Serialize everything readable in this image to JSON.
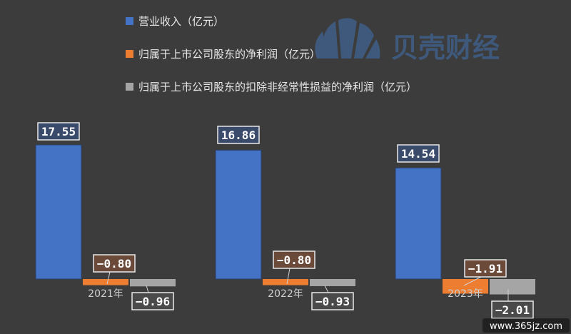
{
  "chart_data": {
    "type": "bar",
    "categories": [
      "2021年",
      "2022年",
      "2023年"
    ],
    "series": [
      {
        "name": "营业收入（亿元）",
        "values": [
          17.55,
          16.86,
          14.54
        ],
        "color": "#4472c4",
        "label_bg": "#3a4a6b"
      },
      {
        "name": "归属于上市公司股东的净利润（亿元）",
        "values": [
          -0.8,
          -0.8,
          -1.91
        ],
        "color": "#ed7d31",
        "label_bg": "#6b4a3a"
      },
      {
        "name": "归属于上市公司股东的扣除非经常性损益的净利润（亿元）",
        "values": [
          -0.96,
          -0.93,
          -2.01
        ],
        "color": "#a5a5a5",
        "label_bg": "#4a4a4a"
      }
    ],
    "data_labels": [
      [
        "17.55",
        "16.86",
        "14.54"
      ],
      [
        "−0.80",
        "−0.80",
        "−1.91"
      ],
      [
        "−0.96",
        "−0.93",
        "−2.01"
      ]
    ],
    "ylim": [
      -2.5,
      22
    ],
    "grid": false,
    "legend_position": "top-center",
    "background": "#3c3c3c"
  },
  "watermark": {
    "brand_text": "贝壳财经",
    "site_text": "www.365jz.com",
    "brand_color": "#3f5f86"
  }
}
